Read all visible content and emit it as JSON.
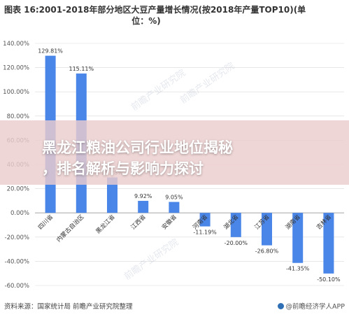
{
  "title_line1": "图表 16:2001-2018年部分地区大豆产量增长情况(按2018年产量TOP10)(单",
  "title_line2": "位：%)",
  "overlay_text_line1": "黑龙江粮油公司行业地位揭秘",
  "overlay_text_line2": "，排名解析与影响力探讨",
  "footer_source": "资料来源：国家统计局 前瞻产业研究院整理",
  "footer_brand": "@前瞻经济学人APP",
  "watermark_text": "前瞻产业研究院",
  "colors": {
    "bar": "#4a86e8",
    "grid": "#d9d9d9",
    "axis_text": "#555555"
  },
  "chart_data": {
    "type": "bar",
    "title": "图表 16:2001-2018年部分地区大豆产量增长情况(按2018年产量TOP10)(单位：%)",
    "categories": [
      "四川省",
      "内蒙古自治区",
      "黑龙江省",
      "江西省",
      "安徽省",
      "河南省",
      "湖北省",
      "江苏省",
      "湖南省",
      "吉林省"
    ],
    "values": [
      129.81,
      115.11,
      29.28,
      9.92,
      9.05,
      -11.19,
      -20.0,
      -26.8,
      -41.35,
      -50.1
    ],
    "value_labels": [
      "129.81%",
      "115.11%",
      "29.28%",
      "9.92%",
      "9.05%",
      "-11.19%",
      "-20.00%",
      "-26.80%",
      "-41.35%",
      "-50.10%"
    ],
    "yticks": [
      "140.00%",
      "120.00%",
      "100.00%",
      "80.00%",
      "60.00%",
      "40.00%",
      "20.00%",
      "0.00%",
      "-20.00%",
      "-40.00%",
      "-60.00%"
    ],
    "ylim": [
      -60,
      140
    ],
    "grid": true
  }
}
